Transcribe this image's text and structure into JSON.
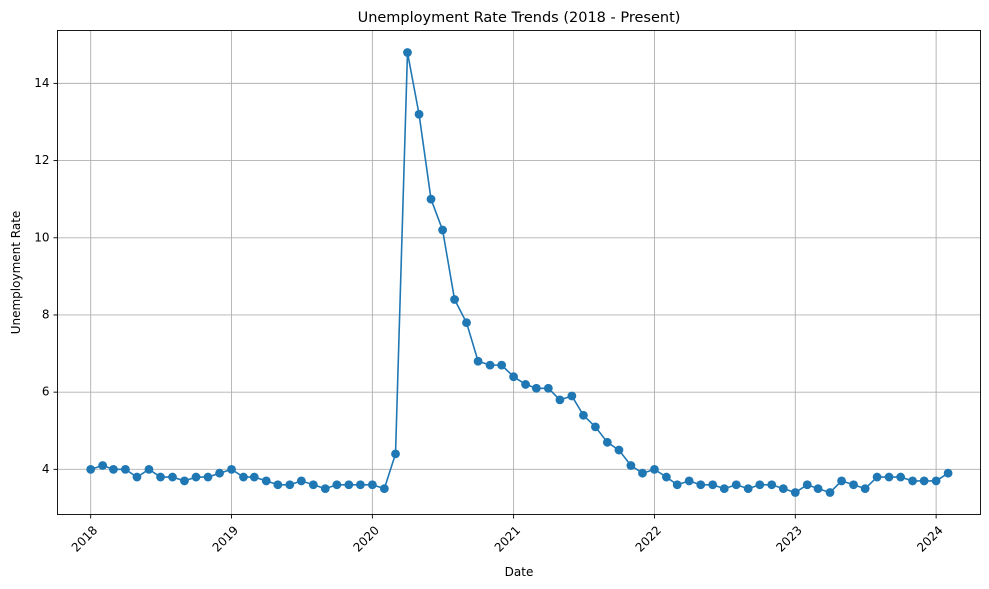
{
  "chart_data": {
    "type": "line",
    "title": "Unemployment Rate Trends (2018 - Present)",
    "xlabel": "Date",
    "ylabel": "Unemployment Rate",
    "xlim": [
      "2017-10-07",
      "2024-04-25"
    ],
    "ylim": [
      2.83,
      15.37
    ],
    "grid": true,
    "x_ticks": [
      "2018",
      "2019",
      "2020",
      "2021",
      "2022",
      "2023",
      "2024"
    ],
    "y_ticks": [
      "4",
      "6",
      "8",
      "10",
      "12",
      "14"
    ],
    "x_tick_rotation": 45,
    "series_color": "#1f77b4",
    "marker": "circle",
    "series": [
      {
        "x": [
          "2018-01",
          "2018-02",
          "2018-03",
          "2018-04",
          "2018-05",
          "2018-06",
          "2018-07",
          "2018-08",
          "2018-09",
          "2018-10",
          "2018-11",
          "2018-12",
          "2019-01",
          "2019-02",
          "2019-03",
          "2019-04",
          "2019-05",
          "2019-06",
          "2019-07",
          "2019-08",
          "2019-09",
          "2019-10",
          "2019-11",
          "2019-12",
          "2020-01",
          "2020-02",
          "2020-03",
          "2020-04",
          "2020-05",
          "2020-06",
          "2020-07",
          "2020-08",
          "2020-09",
          "2020-10",
          "2020-11",
          "2020-12",
          "2021-01",
          "2021-02",
          "2021-03",
          "2021-04",
          "2021-05",
          "2021-06",
          "2021-07",
          "2021-08",
          "2021-09",
          "2021-10",
          "2021-11",
          "2021-12",
          "2022-01",
          "2022-02",
          "2022-03",
          "2022-04",
          "2022-05",
          "2022-06",
          "2022-07",
          "2022-08",
          "2022-09",
          "2022-10",
          "2022-11",
          "2022-12",
          "2023-01",
          "2023-02",
          "2023-03",
          "2023-04",
          "2023-05",
          "2023-06",
          "2023-07",
          "2023-08",
          "2023-09",
          "2023-10",
          "2023-11",
          "2023-12",
          "2024-01",
          "2024-02"
        ],
        "y": [
          4.0,
          4.1,
          4.0,
          4.0,
          3.8,
          4.0,
          3.8,
          3.8,
          3.7,
          3.8,
          3.8,
          3.9,
          4.0,
          3.8,
          3.8,
          3.7,
          3.6,
          3.6,
          3.7,
          3.6,
          3.5,
          3.6,
          3.6,
          3.6,
          3.6,
          3.5,
          4.4,
          14.8,
          13.2,
          11.0,
          10.2,
          8.4,
          7.8,
          6.8,
          6.7,
          6.7,
          6.4,
          6.2,
          6.1,
          6.1,
          5.8,
          5.9,
          5.4,
          5.1,
          4.7,
          4.5,
          4.1,
          3.9,
          4.0,
          3.8,
          3.6,
          3.7,
          3.6,
          3.6,
          3.5,
          3.6,
          3.5,
          3.6,
          3.6,
          3.5,
          3.4,
          3.6,
          3.5,
          3.4,
          3.7,
          3.6,
          3.5,
          3.8,
          3.8,
          3.8,
          3.7,
          3.7,
          3.7,
          3.9
        ]
      }
    ]
  }
}
